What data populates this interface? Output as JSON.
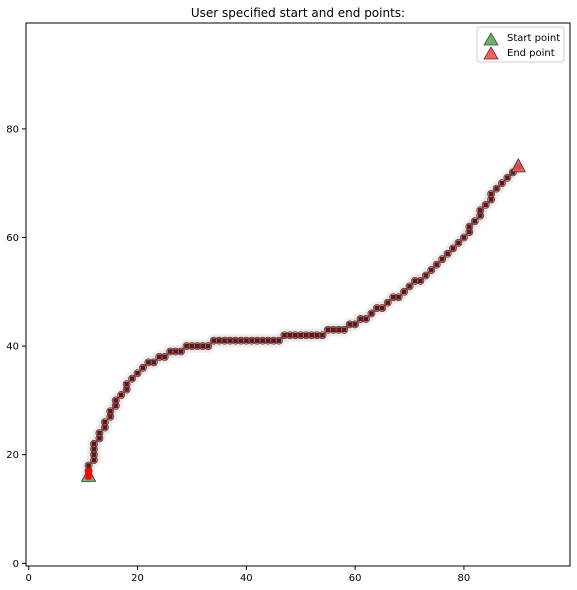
{
  "chart_data": {
    "type": "scatter",
    "title": "User specified start and end points:",
    "xlabel": "",
    "ylabel": "",
    "xlim": [
      -0.5,
      99.5
    ],
    "ylim": [
      99.5,
      -0.5
    ],
    "y_inverted": true,
    "grid": false,
    "legend_position": "top-right",
    "x_ticks": [
      0,
      20,
      40,
      60,
      80
    ],
    "y_ticks": [
      0,
      20,
      40,
      60,
      80
    ],
    "path": [
      [
        11,
        16
      ],
      [
        11,
        17
      ],
      [
        11,
        18
      ],
      [
        12,
        19
      ],
      [
        12,
        20
      ],
      [
        12,
        21
      ],
      [
        12,
        22
      ],
      [
        13,
        23
      ],
      [
        13,
        24
      ],
      [
        14,
        25
      ],
      [
        14,
        26
      ],
      [
        15,
        27
      ],
      [
        15,
        28
      ],
      [
        16,
        29
      ],
      [
        16,
        30
      ],
      [
        17,
        31
      ],
      [
        18,
        32
      ],
      [
        18,
        33
      ],
      [
        19,
        34
      ],
      [
        20,
        35
      ],
      [
        21,
        36
      ],
      [
        22,
        37
      ],
      [
        23,
        37
      ],
      [
        24,
        38
      ],
      [
        25,
        38
      ],
      [
        26,
        39
      ],
      [
        27,
        39
      ],
      [
        28,
        39
      ],
      [
        29,
        40
      ],
      [
        30,
        40
      ],
      [
        31,
        40
      ],
      [
        32,
        40
      ],
      [
        33,
        40
      ],
      [
        34,
        41
      ],
      [
        35,
        41
      ],
      [
        36,
        41
      ],
      [
        37,
        41
      ],
      [
        38,
        41
      ],
      [
        39,
        41
      ],
      [
        40,
        41
      ],
      [
        41,
        41
      ],
      [
        42,
        41
      ],
      [
        43,
        41
      ],
      [
        44,
        41
      ],
      [
        45,
        41
      ],
      [
        46,
        41
      ],
      [
        47,
        42
      ],
      [
        48,
        42
      ],
      [
        49,
        42
      ],
      [
        50,
        42
      ],
      [
        51,
        42
      ],
      [
        52,
        42
      ],
      [
        53,
        42
      ],
      [
        54,
        42
      ],
      [
        55,
        43
      ],
      [
        56,
        43
      ],
      [
        57,
        43
      ],
      [
        58,
        43
      ],
      [
        59,
        44
      ],
      [
        60,
        44
      ],
      [
        61,
        45
      ],
      [
        62,
        45
      ],
      [
        63,
        46
      ],
      [
        64,
        47
      ],
      [
        65,
        47
      ],
      [
        66,
        48
      ],
      [
        67,
        49
      ],
      [
        68,
        49
      ],
      [
        69,
        50
      ],
      [
        70,
        51
      ],
      [
        71,
        52
      ],
      [
        72,
        52
      ],
      [
        73,
        53
      ],
      [
        74,
        54
      ],
      [
        75,
        55
      ],
      [
        76,
        56
      ],
      [
        77,
        57
      ],
      [
        78,
        58
      ],
      [
        79,
        59
      ],
      [
        80,
        60
      ],
      [
        81,
        61
      ],
      [
        81,
        62
      ],
      [
        82,
        63
      ],
      [
        83,
        64
      ],
      [
        83,
        65
      ],
      [
        84,
        66
      ],
      [
        85,
        67
      ],
      [
        85,
        68
      ],
      [
        86,
        69
      ],
      [
        87,
        70
      ],
      [
        88,
        71
      ],
      [
        89,
        72
      ],
      [
        90,
        73
      ]
    ],
    "series": [
      {
        "name": "Start point",
        "marker": "triangle",
        "color": "#5aaa5a",
        "points": [
          [
            11,
            16
          ]
        ]
      },
      {
        "name": "End point",
        "marker": "triangle",
        "color": "#e8524f",
        "points": [
          [
            90,
            73
          ]
        ]
      }
    ],
    "colors": {
      "path_dot": "#c06060",
      "path_core": "#3a0c0c",
      "shadow": "#d8d8d8",
      "start_marker_dot": "#ff0000"
    }
  }
}
